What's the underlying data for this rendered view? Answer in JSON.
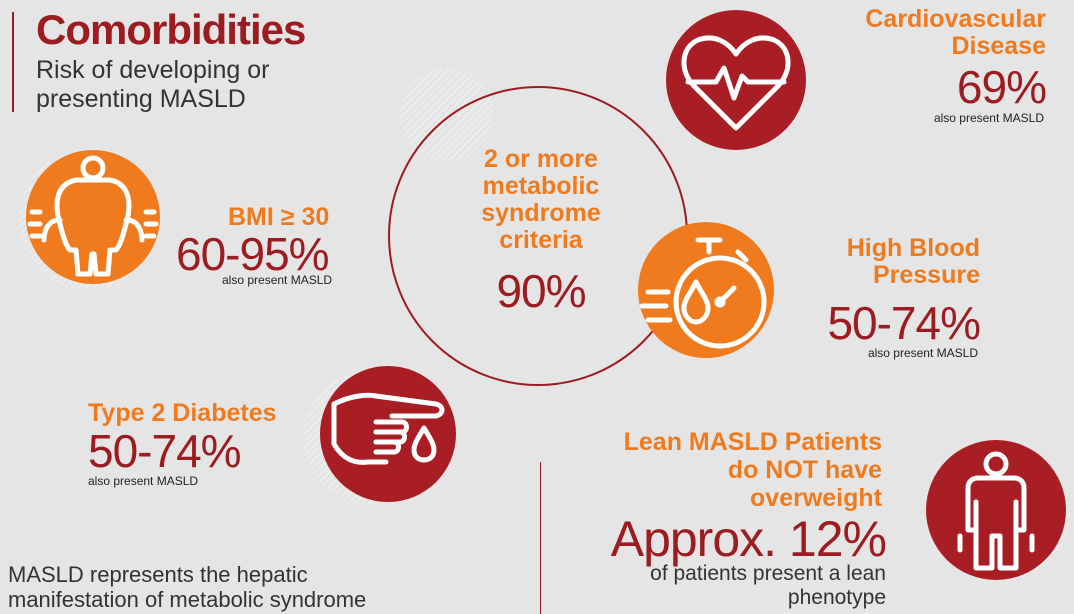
{
  "header": {
    "title": "Comorbidities",
    "subtitle": "Risk of developing or presenting MASLD"
  },
  "center": {
    "label": "2 or more metabolic syndrome criteria",
    "value": "90%"
  },
  "items": {
    "bmi": {
      "label": "BMI ≥ 30",
      "value": "60-95%",
      "note": "also present MASLD"
    },
    "cvd": {
      "label": "Cardiovascular Disease",
      "value": "69%",
      "note": "also present MASLD"
    },
    "hbp": {
      "label": "High Blood Pressure",
      "value": "50-74%",
      "note": "also present MASLD"
    },
    "t2d": {
      "label": "Type 2 Diabetes",
      "value": "50-74%",
      "note": "also present MASLD"
    },
    "lean": {
      "label": "Lean MASLD Patients do NOT have overweight",
      "value": "Approx. 12%",
      "note": "of patients present a lean phenotype"
    }
  },
  "footer": {
    "text": "MASLD represents the hepatic manifestation of metabolic syndrome"
  },
  "icons": {
    "bmi": "obese-person-icon",
    "cvd": "heart-pulse-icon",
    "hbp": "stopwatch-drop-icon",
    "t2d": "finger-blood-drop-icon",
    "lean": "lean-person-icon"
  },
  "colors": {
    "accent_red": "#a81e24",
    "accent_orange": "#f07b1f",
    "background": "#e6e5e5"
  }
}
